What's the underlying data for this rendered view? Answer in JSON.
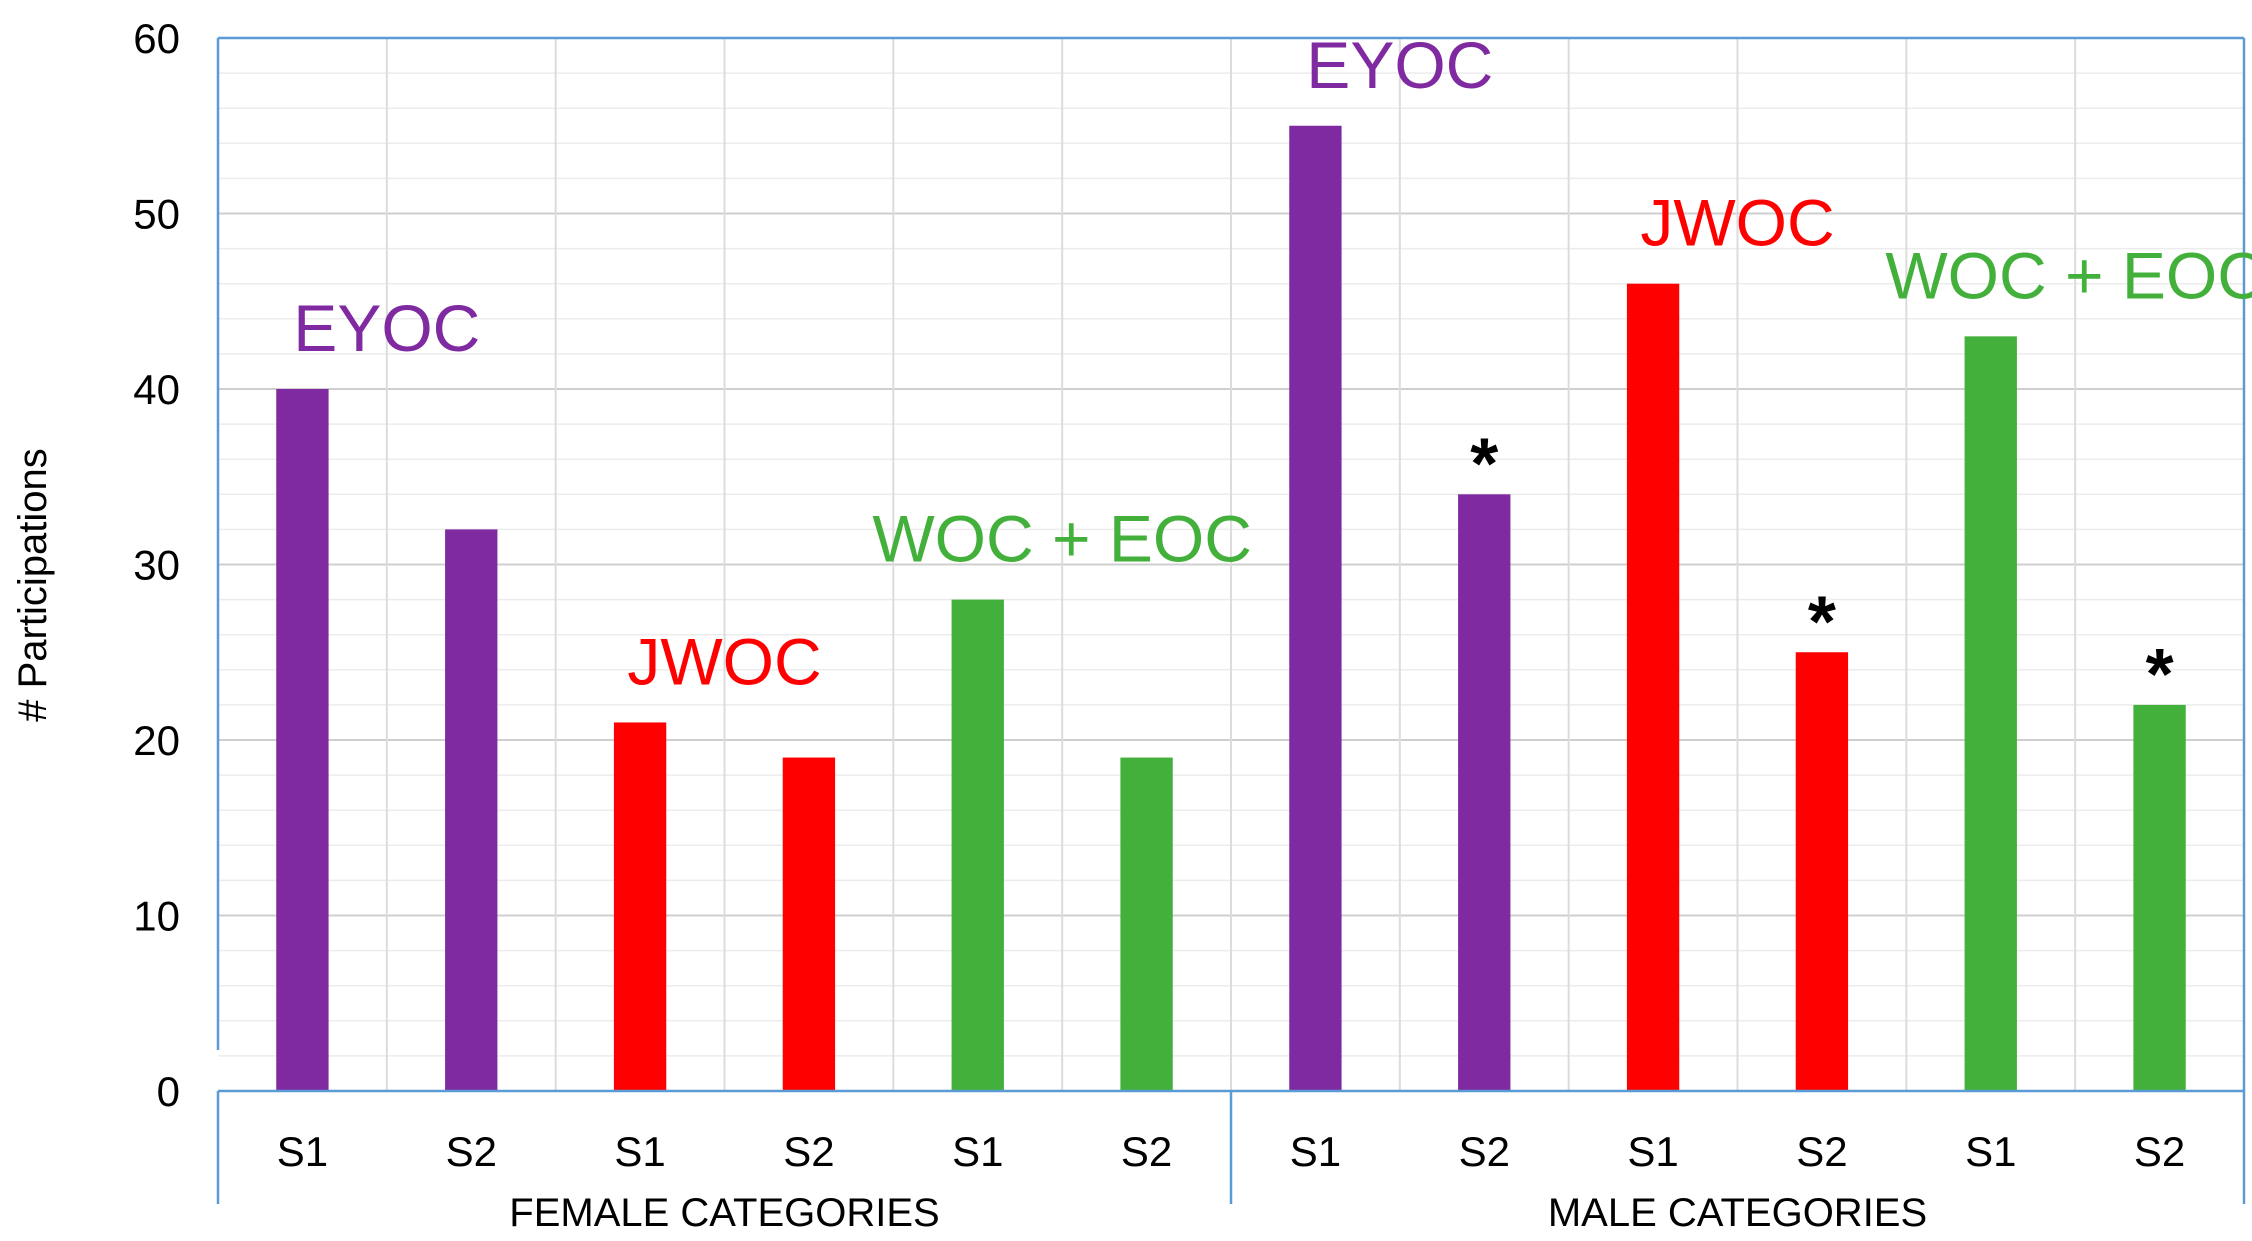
{
  "chart_data": {
    "type": "bar",
    "title": "",
    "xlabel": "",
    "ylabel": "# Participations",
    "ylim": [
      0,
      60
    ],
    "yticks": [
      0,
      10,
      20,
      30,
      40,
      50,
      60
    ],
    "grid": true,
    "groups": [
      {
        "label": "FEMALE CATEGORIES",
        "subgroups": [
          {
            "label": "EYOC",
            "color": "#7f2aa0",
            "bars": [
              {
                "category": "S1",
                "value": 40,
                "marker": ""
              },
              {
                "category": "S2",
                "value": 32,
                "marker": ""
              }
            ]
          },
          {
            "label": "JWOC",
            "color": "#ff0000",
            "bars": [
              {
                "category": "S1",
                "value": 21,
                "marker": ""
              },
              {
                "category": "S2",
                "value": 19,
                "marker": ""
              }
            ]
          },
          {
            "label": "WOC + EOC",
            "color": "#44b03c",
            "bars": [
              {
                "category": "S1",
                "value": 28,
                "marker": ""
              },
              {
                "category": "S2",
                "value": 19,
                "marker": ""
              }
            ]
          }
        ]
      },
      {
        "label": "MALE CATEGORIES",
        "subgroups": [
          {
            "label": "EYOC",
            "color": "#7f2aa0",
            "bars": [
              {
                "category": "S1",
                "value": 55,
                "marker": ""
              },
              {
                "category": "S2",
                "value": 34,
                "marker": "*"
              }
            ]
          },
          {
            "label": "JWOC",
            "color": "#ff0000",
            "bars": [
              {
                "category": "S1",
                "value": 46,
                "marker": ""
              },
              {
                "category": "S2",
                "value": 25,
                "marker": "*"
              }
            ]
          },
          {
            "label": "WOC + EOC",
            "color": "#44b03c",
            "bars": [
              {
                "category": "S1",
                "value": 43,
                "marker": ""
              },
              {
                "category": "S2",
                "value": 22,
                "marker": "*"
              }
            ]
          }
        ]
      }
    ]
  }
}
